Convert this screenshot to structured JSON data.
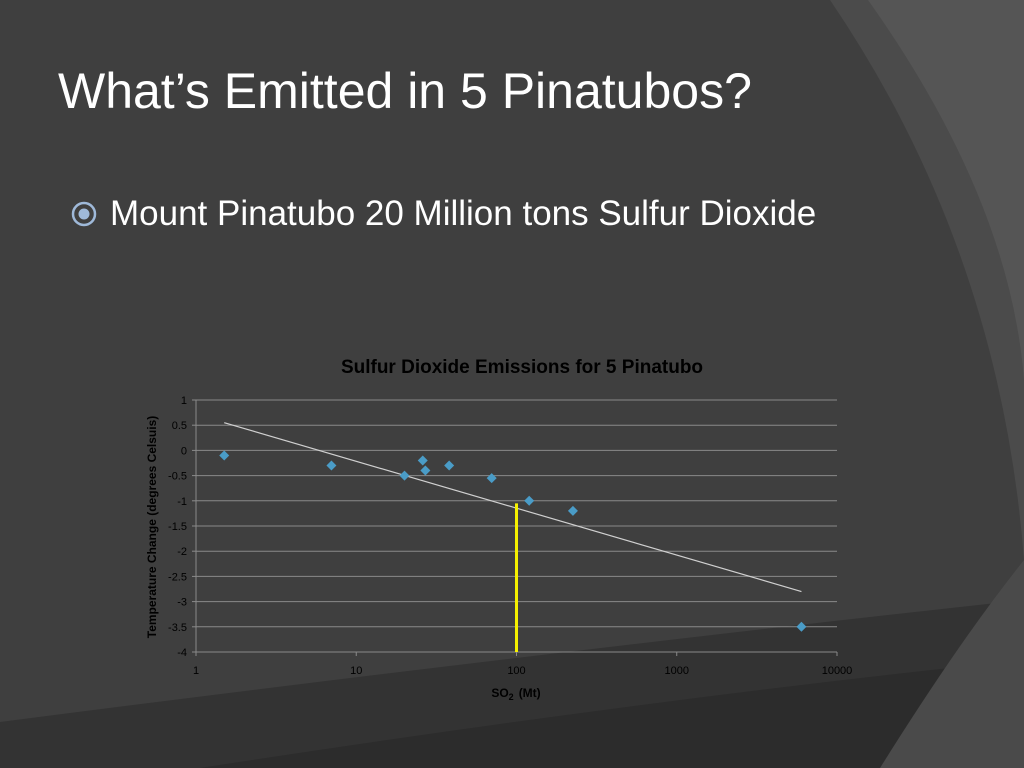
{
  "slide": {
    "title": "What’s Emitted in 5 Pinatubos?",
    "bullets": [
      {
        "icon": "radio-bullet-icon",
        "text": "Mount Pinatubo 20 Million tons Sulfur Dioxide"
      }
    ]
  },
  "colors": {
    "background": "#3f3f3f",
    "text": "#ffffff",
    "bullet_accent": "#9fb9d9",
    "marker": "#4a9cc7",
    "trendline": "#d0d0d0",
    "highlight_line": "#f5f000",
    "chart_text": "#000000"
  },
  "chart_data": {
    "type": "scatter",
    "title": "Sulfur Dioxide Emissions for 5 Pinatubo",
    "xlabel": "SO",
    "xlabel_sub": "2",
    "xlabel_unit": "(Mt)",
    "ylabel": "Temperature Change (degrees Celsuis)",
    "x_scale": "log",
    "xlim": [
      1,
      10000
    ],
    "ylim": [
      -4,
      1
    ],
    "x_ticks": [
      "1",
      "10",
      "100",
      "1000",
      "10000"
    ],
    "y_ticks": [
      "1",
      "0.5",
      "0",
      "-0.5",
      "-1",
      "-1.5",
      "-2",
      "-2.5",
      "-3",
      "-3.5",
      "-4"
    ],
    "grid": "horizontal",
    "legend": "none",
    "points": [
      {
        "x": 1.5,
        "y": -0.1
      },
      {
        "x": 7,
        "y": -0.3
      },
      {
        "x": 20,
        "y": -0.5
      },
      {
        "x": 26,
        "y": -0.2
      },
      {
        "x": 27,
        "y": -0.4
      },
      {
        "x": 38,
        "y": -0.3
      },
      {
        "x": 70,
        "y": -0.55
      },
      {
        "x": 120,
        "y": -1.0
      },
      {
        "x": 225,
        "y": -1.2
      },
      {
        "x": 6000,
        "y": -3.5
      }
    ],
    "trendline": {
      "x": [
        1.5,
        6000
      ],
      "y": [
        0.55,
        -2.8
      ]
    },
    "highlight": {
      "x": 100,
      "y_from": -4,
      "y_to": -1.05
    }
  }
}
